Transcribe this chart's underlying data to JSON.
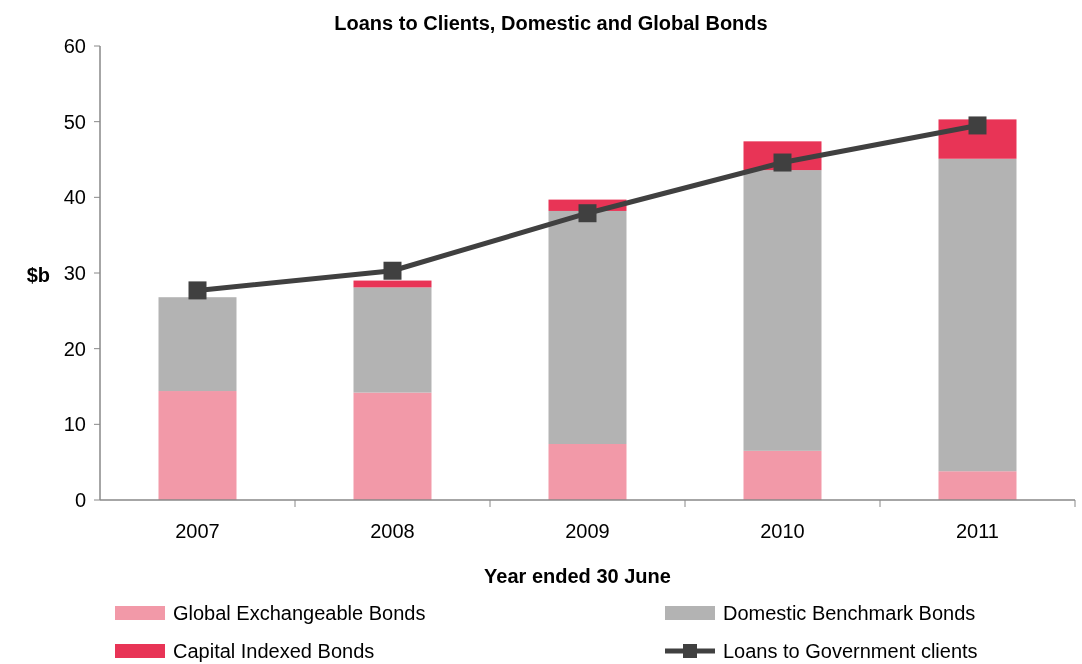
{
  "chart_data": {
    "type": "bar",
    "title": "Loans to Clients, Domestic and Global Bonds",
    "xlabel": "Year ended 30 June",
    "ylabel": "$b",
    "categories": [
      "2007",
      "2008",
      "2009",
      "2010",
      "2011"
    ],
    "stacked": true,
    "series": [
      {
        "name": "Global Exchangeable Bonds",
        "color": "#f299a8",
        "values": [
          14.4,
          14.2,
          7.4,
          6.5,
          3.8
        ]
      },
      {
        "name": "Domestic Benchmark Bonds",
        "color": "#b3b3b3",
        "values": [
          12.4,
          13.9,
          30.8,
          37.1,
          41.3
        ]
      },
      {
        "name": "Capital Indexed Bonds",
        "color": "#e83456",
        "values": [
          0,
          0.9,
          1.5,
          3.8,
          5.2
        ]
      },
      {
        "name": "Loans to Government clients",
        "type": "line",
        "color": "#404040",
        "marker": "square",
        "values": [
          27.7,
          30.3,
          37.9,
          44.6,
          49.5
        ]
      }
    ],
    "ylim": [
      0,
      60
    ],
    "yticks": [
      0,
      10,
      20,
      30,
      40,
      50,
      60
    ],
    "grid": false,
    "legend": "bottom"
  }
}
